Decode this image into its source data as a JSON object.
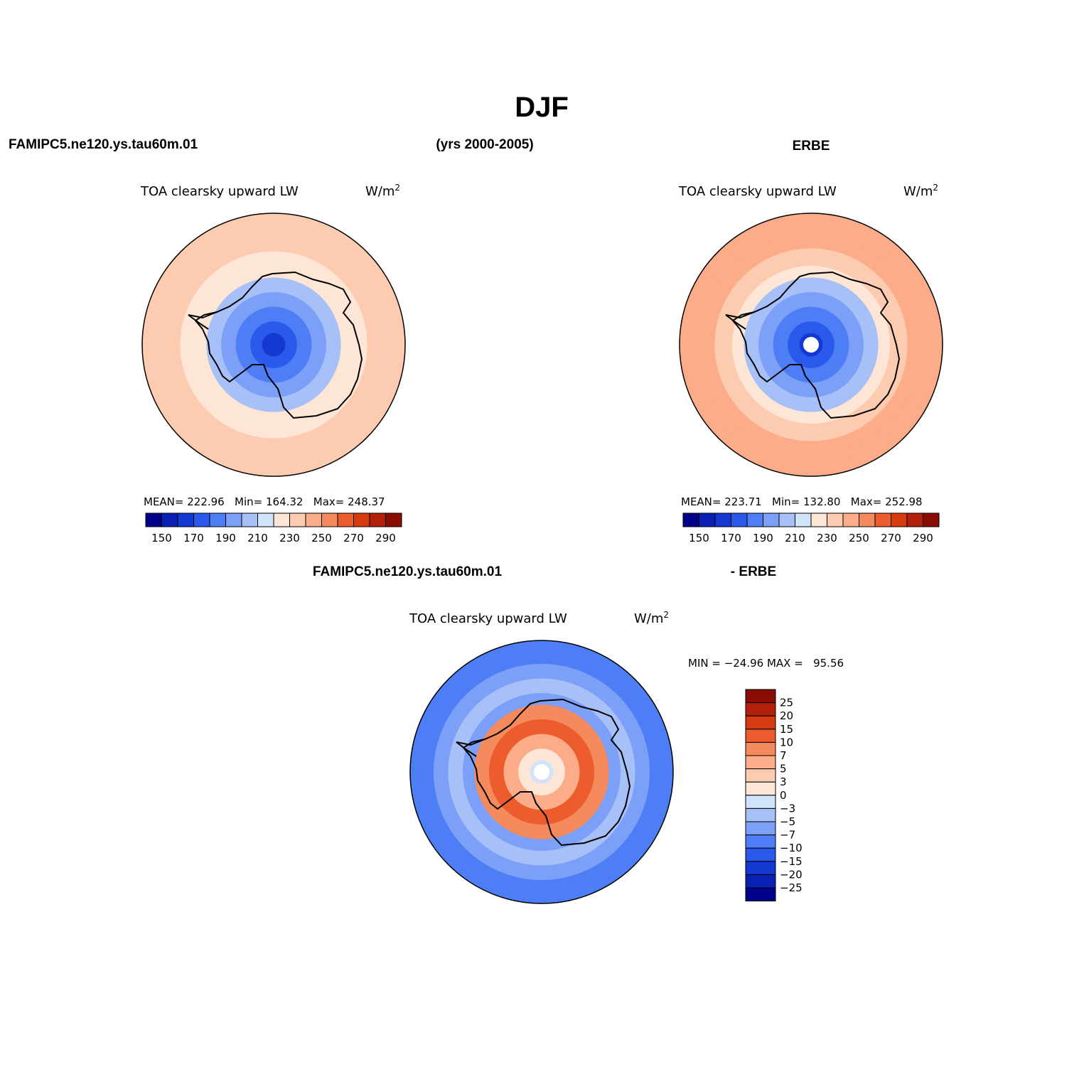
{
  "figure": {
    "season_title": "DJF",
    "model_case": "FAMIPC5.ne120.ys.tau60m.01",
    "years": "(yrs 2000-2005)",
    "obs_name": "ERBE",
    "diff_left": "FAMIPC5.ne120.ys.tau60m.01",
    "diff_right": "- ERBE"
  },
  "colors": {
    "abs_scale": [
      "#00008a",
      "#0a1fb4",
      "#1438d2",
      "#2a59eb",
      "#4d7ef5",
      "#7ca0f7",
      "#a7c0f7",
      "#d1e2fb",
      "#fde6d6",
      "#fdcbb0",
      "#fcac88",
      "#f58a5d",
      "#ec5c2c",
      "#d63a0f",
      "#b3200a",
      "#8a0d04"
    ],
    "diff_scale": [
      "#00008a",
      "#0a1fb4",
      "#1438d2",
      "#2a59eb",
      "#4d7ef5",
      "#7ca0f7",
      "#a7c0f7",
      "#d1e2fb",
      "#fde6d6",
      "#fdcbb0",
      "#fcac88",
      "#f58a5d",
      "#ec5c2c",
      "#d63a0f",
      "#b3200a",
      "#8a0d04"
    ],
    "missing": "#ffffff",
    "coastline": "#000000"
  },
  "chart_data": [
    {
      "type": "map",
      "id": "model",
      "variable": "TOA clearsky upward LW",
      "units_base": "W/m",
      "units_exp": "2",
      "stats_label": "MEAN= 222.96   Min= 164.32   Max= 248.37",
      "stats": {
        "mean": 222.96,
        "min": 164.32,
        "max": 248.37
      },
      "colorbar_ticks": [
        "150",
        "170",
        "190",
        "210",
        "230",
        "250",
        "270",
        "290"
      ],
      "ring_levels": [
        {
          "lat": -48,
          "value": 238
        },
        {
          "lat": -53,
          "value": 233
        },
        {
          "lat": -58,
          "value": 228
        },
        {
          "lat": -63,
          "value": 222
        },
        {
          "lat": -67,
          "value": 205
        },
        {
          "lat": -72,
          "value": 195
        },
        {
          "lat": -77,
          "value": 185
        },
        {
          "lat": -82,
          "value": 175
        },
        {
          "lat": -86,
          "value": 168
        }
      ],
      "pole_missing": false
    },
    {
      "type": "map",
      "id": "obs",
      "variable": "TOA clearsky upward LW",
      "units_base": "W/m",
      "units_exp": "2",
      "stats_label": "MEAN= 223.71   Min= 132.80   Max= 252.98",
      "stats": {
        "mean": 223.71,
        "min": 132.8,
        "max": 252.98
      },
      "colorbar_ticks": [
        "150",
        "170",
        "190",
        "210",
        "230",
        "250",
        "270",
        "290"
      ],
      "ring_levels": [
        {
          "lat": -48,
          "value": 246
        },
        {
          "lat": -52,
          "value": 241
        },
        {
          "lat": -57,
          "value": 236
        },
        {
          "lat": -63,
          "value": 227
        },
        {
          "lat": -67,
          "value": 205
        },
        {
          "lat": -72,
          "value": 192
        },
        {
          "lat": -77,
          "value": 182
        },
        {
          "lat": -82,
          "value": 172
        },
        {
          "lat": -86,
          "value": 164
        }
      ],
      "pole_missing": true
    },
    {
      "type": "map",
      "id": "diff",
      "variable": "TOA clearsky upward LW",
      "units_base": "W/m",
      "units_exp": "2",
      "stats_label": "MIN = −24.96 MAX =   95.56",
      "stats": {
        "min": -24.96,
        "max": 95.56
      },
      "colorbar_ticks": [
        "25",
        "20",
        "15",
        "10",
        "7",
        "5",
        "3",
        "0",
        "−3",
        "−5",
        "−7",
        "−10",
        "−15",
        "−20",
        "−25"
      ],
      "ring_levels": [
        {
          "lat": -48,
          "value": -8
        },
        {
          "lat": -53,
          "value": -6
        },
        {
          "lat": -58,
          "value": -4
        },
        {
          "lat": -63,
          "value": -6
        },
        {
          "lat": -67,
          "value": 8
        },
        {
          "lat": -72,
          "value": 12
        },
        {
          "lat": -77,
          "value": 6
        },
        {
          "lat": -82,
          "value": 2
        },
        {
          "lat": -86,
          "value": -2
        }
      ],
      "pole_missing": true
    }
  ]
}
